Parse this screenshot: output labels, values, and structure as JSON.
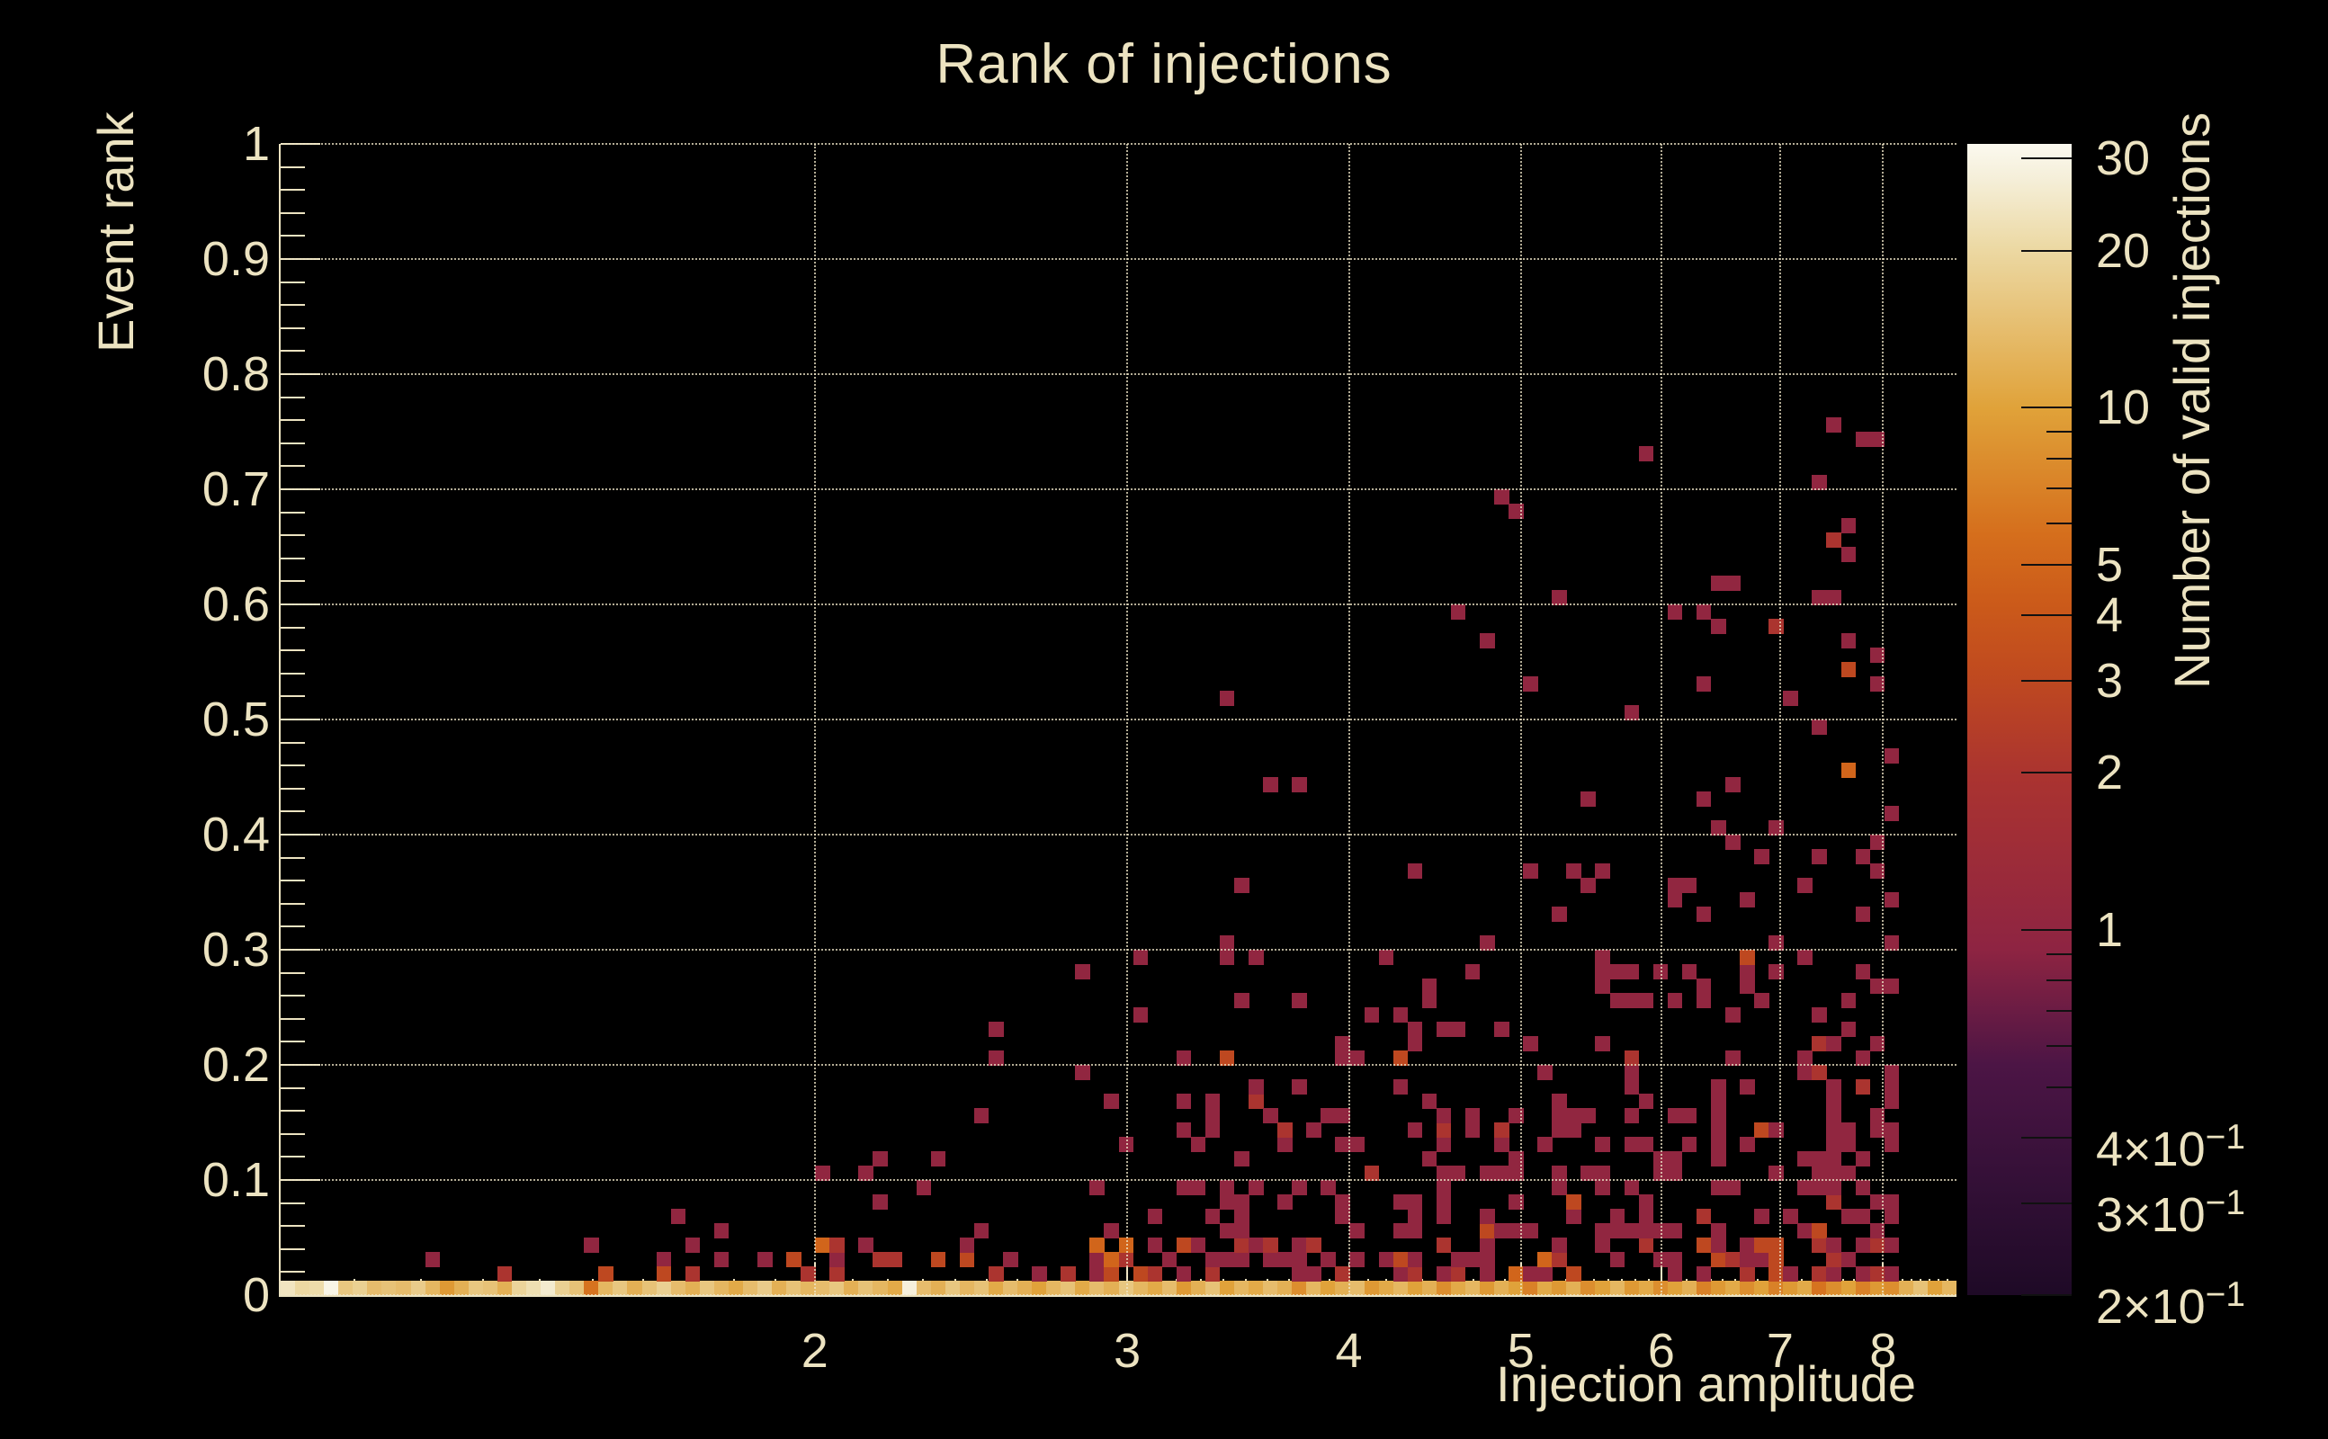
{
  "title": "Rank of injections",
  "axes": {
    "x": {
      "title": "Injection amplitude",
      "scale": "log",
      "min": 1.0,
      "max": 8.8,
      "major_ticks": [
        2,
        3,
        4,
        5,
        6,
        7,
        8
      ],
      "major_tick_labels": [
        "2",
        "3",
        "4",
        "5",
        "6",
        "7",
        "8"
      ],
      "minor_tick_step": 0.1
    },
    "y": {
      "title": "Event rank",
      "scale": "linear",
      "min": 0,
      "max": 1,
      "major_ticks": [
        0,
        0.1,
        0.2,
        0.3,
        0.4,
        0.5,
        0.6,
        0.7,
        0.8,
        0.9,
        1
      ],
      "major_tick_labels": [
        "0",
        "0.1",
        "0.2",
        "0.3",
        "0.4",
        "0.5",
        "0.6",
        "0.7",
        "0.8",
        "0.9",
        "1"
      ],
      "minor_tick_step": 0.02
    },
    "z": {
      "title": "Number of valid injections",
      "scale": "log",
      "min": 0.2,
      "max": 32,
      "labeled_ticks": [
        {
          "v": 30,
          "t": "30",
          "e": ""
        },
        {
          "v": 20,
          "t": "20",
          "e": ""
        },
        {
          "v": 10,
          "t": "10",
          "e": ""
        },
        {
          "v": 5,
          "t": "5",
          "e": ""
        },
        {
          "v": 4,
          "t": "4",
          "e": ""
        },
        {
          "v": 3,
          "t": "3",
          "e": ""
        },
        {
          "v": 2,
          "t": "2",
          "e": ""
        },
        {
          "v": 1,
          "t": "1",
          "e": ""
        },
        {
          "v": 0.4,
          "t": "4×10",
          "e": "−1"
        },
        {
          "v": 0.3,
          "t": "3×10",
          "e": "−1"
        },
        {
          "v": 0.2,
          "t": "2×10",
          "e": "−1"
        }
      ],
      "minor_ticks": [
        9,
        8,
        7,
        6,
        0.9,
        0.8,
        0.7,
        0.6,
        0.5
      ]
    }
  },
  "colors": {
    "background": "#000000",
    "text": "#ece3c1",
    "grid": "rgba(240,231,200,0.75)",
    "axis_line": "#ece3c1",
    "colorbar_tick": "#111111"
  },
  "chart_data": {
    "type": "heatmap",
    "description": "2D histogram of event rank vs injection amplitude; log x and log color scale. Dense bright row of high counts at rank=0 across all amplitudes; sparse low-count (1-3) bins forming a wedge that rises and densifies toward high amplitude, reaching rank~0.76 near amplitude 8.",
    "x_bins": 116,
    "y_bins": 80,
    "x_range": [
      1.0,
      8.8
    ],
    "y_range": [
      0,
      1
    ],
    "z_range": [
      0.2,
      32
    ],
    "palette_name": "dark-body-radiator",
    "palette_stops": [
      [
        0.0,
        "#1e0a26"
      ],
      [
        0.1,
        "#341037"
      ],
      [
        0.2,
        "#4c1545"
      ],
      [
        0.3,
        "#8e2442"
      ],
      [
        0.45,
        "#aa3330"
      ],
      [
        0.54,
        "#c04a1f"
      ],
      [
        0.6,
        "#cb5a1a"
      ],
      [
        0.66,
        "#d56e1c"
      ],
      [
        0.77,
        "#e0a239"
      ],
      [
        0.91,
        "#ecd9a4"
      ],
      [
        0.97,
        "#f5efd9"
      ],
      [
        1.0,
        "#fbf9ef"
      ]
    ],
    "bottom_row_counts": [
      24,
      20,
      21,
      30,
      16,
      18,
      14,
      15,
      14,
      17,
      13,
      9,
      12,
      16,
      15,
      12,
      19,
      22,
      26,
      18,
      15,
      6,
      13,
      16,
      12,
      15,
      18,
      14,
      12,
      16,
      13,
      11,
      14,
      17,
      12,
      15,
      13,
      14,
      16,
      12,
      15,
      13,
      11,
      28,
      14,
      12,
      16,
      13,
      15,
      11,
      14,
      12,
      10,
      13,
      15,
      11,
      14,
      12,
      16,
      13,
      11,
      14,
      9,
      12,
      15,
      10,
      13,
      11,
      14,
      12,
      8,
      13,
      10,
      12,
      14,
      9,
      11,
      13,
      10,
      12,
      8,
      11,
      13,
      9,
      12,
      10,
      7,
      11,
      9,
      12,
      8,
      10,
      13,
      9,
      11,
      8,
      10,
      12,
      7,
      9,
      11,
      8,
      10,
      7,
      9,
      11,
      6,
      8,
      10,
      7,
      9,
      8,
      12,
      15,
      10,
      13
    ],
    "landmark_cells": [
      [
        109,
        59,
        1
      ],
      [
        110,
        59,
        1
      ],
      [
        94,
        58,
        1
      ],
      [
        106,
        56,
        1
      ],
      [
        84,
        55,
        1
      ],
      [
        85,
        54,
        1
      ],
      [
        107,
        52,
        2
      ],
      [
        108,
        51,
        1
      ],
      [
        100,
        49,
        1
      ],
      [
        88,
        48,
        1
      ],
      [
        96,
        47,
        1
      ],
      [
        103,
        46,
        2
      ],
      [
        83,
        45,
        1
      ],
      [
        110,
        44,
        1
      ],
      [
        65,
        41,
        1
      ],
      [
        68,
        35,
        1
      ],
      [
        70,
        35,
        1
      ],
      [
        111,
        37,
        1
      ],
      [
        59,
        23,
        1
      ],
      [
        55,
        22,
        1
      ],
      [
        49,
        18,
        1
      ],
      [
        41,
        9,
        1
      ],
      [
        40,
        8,
        1
      ],
      [
        37,
        8,
        1
      ],
      [
        15,
        1,
        2
      ],
      [
        10,
        2,
        1
      ],
      [
        26,
        1,
        3
      ],
      [
        33,
        2,
        1
      ],
      [
        21,
        3,
        1
      ]
    ],
    "scatter_distribution": {
      "seed": 1337,
      "note": "probability of a filled bin at column c, row r (r>=1) is amp*exp(-(r-1)/tau), r<=rmax",
      "regions": [
        {
          "c0": 0,
          "c1": 17,
          "amp": 0.015,
          "tau": 1.5,
          "rmax": 3
        },
        {
          "c0": 18,
          "c1": 36,
          "amp": 0.16,
          "tau": 2.5,
          "rmax": 8
        },
        {
          "c0": 37,
          "c1": 47,
          "amp": 0.32,
          "tau": 4,
          "rmax": 9
        },
        {
          "c0": 48,
          "c1": 58,
          "amp": 0.36,
          "tau": 6,
          "rmax": 23
        },
        {
          "c0": 59,
          "c1": 65,
          "amp": 0.4,
          "tau": 8,
          "rmax": 24
        },
        {
          "c0": 66,
          "c1": 73,
          "amp": 0.44,
          "tau": 9,
          "rmax": 36
        },
        {
          "c0": 74,
          "c1": 85,
          "amp": 0.5,
          "tau": 11,
          "rmax": 50
        },
        {
          "c0": 86,
          "c1": 95,
          "amp": 0.55,
          "tau": 13,
          "rmax": 56
        },
        {
          "c0": 96,
          "c1": 103,
          "amp": 0.58,
          "tau": 15,
          "rmax": 58
        },
        {
          "c0": 104,
          "c1": 111,
          "amp": 0.62,
          "tau": 16,
          "rmax": 61
        }
      ],
      "count_values": [
        1,
        2,
        3,
        5
      ],
      "level_probs_low_rows": [
        0.55,
        0.3,
        0.12,
        0.03
      ],
      "level_probs_high_rows": [
        0.86,
        0.1,
        0.03,
        0.01
      ],
      "low_rows_max": 3
    }
  }
}
